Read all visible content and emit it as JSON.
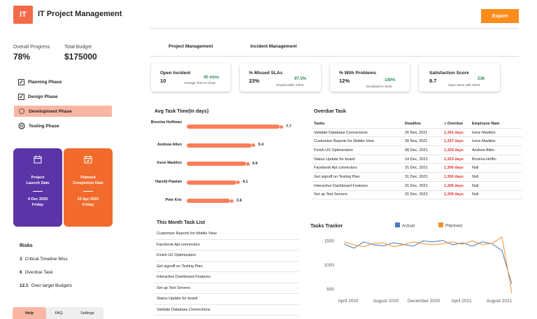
{
  "header": {
    "logo": "IT",
    "title": "IT Project Management",
    "export": "Export"
  },
  "summary": {
    "progress_label": "Overall Progress",
    "progress_value": "78%",
    "budget_label": "Total Budget",
    "budget_value": "$175000"
  },
  "phases": [
    {
      "label": "Planning Phase",
      "icon": "checkbox-checked-icon"
    },
    {
      "label": "Design Phase",
      "icon": "checkbox-checked-icon"
    },
    {
      "label": "Development Phase",
      "icon": "spinner-icon"
    },
    {
      "label": "Testing Phase",
      "icon": "pause-icon"
    }
  ],
  "cards": [
    {
      "title1": "Project",
      "title2": "Launch Date",
      "date": "4 Dec 2020",
      "day": "Friday",
      "color": "#5b35a8"
    },
    {
      "title1": "Planned",
      "title2": "Completion Date",
      "date": "22 Apr 2022",
      "day": "Friday",
      "color": "#f26b2c"
    }
  ],
  "risks": {
    "title": "Risks",
    "items": [
      {
        "num": "3",
        "label": "Critical Timeline Miss"
      },
      {
        "num": "6",
        "label": "Overdue Task"
      },
      {
        "num": "12.1",
        "label": "Over target Budgets"
      }
    ]
  },
  "bottom_tabs": {
    "help": "Help",
    "faq": "FAQ",
    "settings": "Settings"
  },
  "tabs": {
    "pm": "Project Management",
    "im": "Incident Management"
  },
  "kpis": [
    {
      "label": "Open Incident",
      "value": "10",
      "sub_value": "45 mins",
      "sub_label": "Average Time to Close"
    },
    {
      "label": "% Missed SLAs",
      "value": "23%",
      "sub_value": "97.5%",
      "sub_label": "Closed within 24hrs"
    },
    {
      "label": "% With Problems",
      "value": "12%",
      "sub_value": "100%",
      "sub_label": "Escalated to client"
    },
    {
      "label": "Satisfaction Score",
      "value": "8.7",
      "sub_value": "236",
      "sub_label": "Open Items with Client"
    }
  ],
  "avg_task": {
    "title": "Avg Task Time(In days)",
    "rows": [
      {
        "name": "Brosina Hoffman",
        "value": 7.7,
        "value_label": "7.7"
      },
      {
        "name": "Andrew Allen",
        "value": 5.4,
        "value_label": "5.4"
      },
      {
        "name": "Irene Maddox",
        "value": 4.9,
        "value_label": "4.9"
      },
      {
        "name": "Harold Pawlan",
        "value": 4.1,
        "value_label": "4.1"
      },
      {
        "name": "Pete Kriz",
        "value": 3.6,
        "value_label": "3.6"
      }
    ]
  },
  "overdue": {
    "title": "Overdue Task",
    "headers": [
      "Tasks",
      "Deadline",
      "Overdue",
      "Employee Nam"
    ],
    "rows": [
      [
        "Validate Database Connections",
        "26 Nov, 2021",
        "1,341 days",
        "Irene Maddox"
      ],
      [
        "Customize Reports for Mobile View",
        "30 Nov, 2021",
        "1,337 days",
        "Irene Maddox"
      ],
      [
        "Finish UX Optimization",
        "08 Dec, 2021",
        "1,329 days",
        "Andrew Allen"
      ],
      [
        "Status Update for board",
        "14 Dec, 2021",
        "1,323 days",
        "Brosina Hoffm"
      ],
      [
        "Facebook Api connectors",
        "31 Dec, 2021",
        "1,306 days",
        "Null"
      ],
      [
        "Get signoff on Testing Plan",
        "31 Dec, 2021",
        "1,306 days",
        "Null"
      ],
      [
        "Interactive Dashboard Features",
        "31 Dec, 2021",
        "1,306 days",
        "Null"
      ],
      [
        "Set  up Test Servers",
        "31 Dec, 2021",
        "1,306 days",
        "Null"
      ]
    ]
  },
  "month_list": {
    "title": "This Month Task List",
    "items": [
      "Customize Reports for Mobile View",
      "Facebook Api connectors",
      "Finish UX Optimization",
      "Get signoff on Testing Plan",
      "Interactive Dashboard Features",
      "Set  up Test Servers",
      "Status Update for board",
      "Validate Database Connections"
    ]
  },
  "chart_data": {
    "type": "line",
    "title": "Tasks Tracker",
    "x_ticks": [
      "April 2020",
      "August 2020",
      "December 2020",
      "April 2021",
      "August 2021"
    ],
    "y_ticks": [
      1500,
      1000,
      500
    ],
    "ylim": [
      350,
      1650
    ],
    "x": [
      0,
      1,
      2,
      3,
      4,
      5,
      6,
      7,
      8,
      9,
      10,
      11,
      12,
      13,
      14,
      15,
      16,
      17
    ],
    "series": [
      {
        "name": "Actual",
        "color": "#4a78b5",
        "values": [
          1440,
          1350,
          1480,
          1420,
          1400,
          1460,
          1430,
          1390,
          1500,
          1480,
          1510,
          1420,
          1460,
          1390,
          1480,
          1440,
          1300,
          610
        ]
      },
      {
        "name": "Planned",
        "color": "#f5902a",
        "values": [
          1480,
          1420,
          1380,
          1450,
          1460,
          1380,
          1420,
          1480,
          1440,
          1420,
          1440,
          1480,
          1430,
          1500,
          1420,
          1450,
          1580,
          420
        ]
      }
    ],
    "legend_position": "top"
  }
}
